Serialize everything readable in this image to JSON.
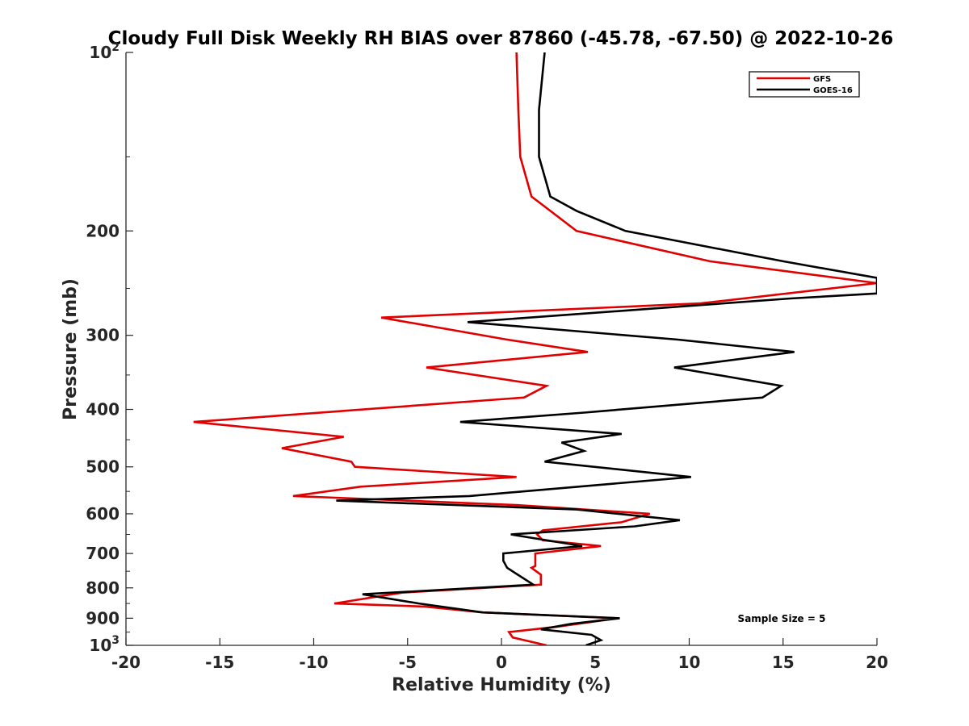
{
  "chart_data": {
    "type": "line",
    "title": "Cloudy Full Disk Weekly RH BIAS over 87860 (-45.78, -67.50) @ 2022-10-26",
    "xlabel": "Relative Humidity (%)",
    "ylabel": "Pressure (mb)",
    "xlim": [
      -20,
      20
    ],
    "ylim": [
      100,
      1000
    ],
    "y_scale": "log",
    "y_reversed": true,
    "x_ticks": [
      "-20",
      "-15",
      "-10",
      "-5",
      "0",
      "5",
      "10",
      "15",
      "20"
    ],
    "y_ticks": [
      {
        "value": 100,
        "label": "10",
        "sup": "2"
      },
      {
        "value": 200,
        "label": "200",
        "sup": ""
      },
      {
        "value": 300,
        "label": "300",
        "sup": ""
      },
      {
        "value": 400,
        "label": "400",
        "sup": ""
      },
      {
        "value": 500,
        "label": "500",
        "sup": ""
      },
      {
        "value": 600,
        "label": "600",
        "sup": ""
      },
      {
        "value": 700,
        "label": "700",
        "sup": ""
      },
      {
        "value": 800,
        "label": "800",
        "sup": ""
      },
      {
        "value": 900,
        "label": "900",
        "sup": ""
      },
      {
        "value": 1000,
        "label": "10",
        "sup": "3"
      }
    ],
    "legend_position": "top-right",
    "annotation": "Sample Size = 5",
    "series": [
      {
        "name": "GFS",
        "color": "#e00000",
        "points": [
          [
            0.8,
            100
          ],
          [
            0.9,
            125
          ],
          [
            1.0,
            150
          ],
          [
            1.6,
            175
          ],
          [
            2.6,
            185
          ],
          [
            4.0,
            200
          ],
          [
            11.1,
            225
          ],
          [
            20,
            245
          ],
          [
            10.6,
            265
          ],
          [
            -6.4,
            280
          ],
          [
            0.3,
            305
          ],
          [
            4.6,
            320
          ],
          [
            -4.0,
            340
          ],
          [
            2.4,
            365
          ],
          [
            1.2,
            382
          ],
          [
            -16.4,
            420
          ],
          [
            -8.4,
            445
          ],
          [
            -11.7,
            465
          ],
          [
            -8.0,
            490
          ],
          [
            -7.8,
            500
          ],
          [
            0.8,
            520
          ],
          [
            -7.5,
            540
          ],
          [
            -11.1,
            560
          ],
          [
            0.8,
            580
          ],
          [
            7.9,
            600
          ],
          [
            6.4,
            620
          ],
          [
            2.2,
            640
          ],
          [
            1.9,
            650
          ],
          [
            2.2,
            665
          ],
          [
            5.3,
            680
          ],
          [
            1.8,
            700
          ],
          [
            1.8,
            735
          ],
          [
            1.6,
            740
          ],
          [
            2.1,
            760
          ],
          [
            2.1,
            790
          ],
          [
            -5.3,
            815
          ],
          [
            -8.9,
            850
          ],
          [
            -4.1,
            860
          ],
          [
            -1.0,
            880
          ],
          [
            6.2,
            900
          ],
          [
            3.0,
            930
          ],
          [
            0.4,
            950
          ],
          [
            0.6,
            970
          ],
          [
            2.4,
            1000
          ]
        ]
      },
      {
        "name": "GOES-16",
        "color": "#000000",
        "points": [
          [
            2.3,
            100
          ],
          [
            2.0,
            125
          ],
          [
            2.0,
            150
          ],
          [
            2.6,
            175
          ],
          [
            4.0,
            185
          ],
          [
            6.6,
            200
          ],
          [
            15.0,
            225
          ],
          [
            20,
            240
          ],
          [
            20,
            255
          ],
          [
            15.4,
            260
          ],
          [
            -1.8,
            285
          ],
          [
            9.4,
            305
          ],
          [
            15.6,
            320
          ],
          [
            9.2,
            340
          ],
          [
            14.9,
            365
          ],
          [
            13.9,
            382
          ],
          [
            4.4,
            405
          ],
          [
            -2.2,
            420
          ],
          [
            6.4,
            440
          ],
          [
            3.2,
            455
          ],
          [
            4.4,
            470
          ],
          [
            2.3,
            490
          ],
          [
            10.1,
            520
          ],
          [
            -1.7,
            560
          ],
          [
            -8.8,
            570
          ],
          [
            4.0,
            590
          ],
          [
            9.5,
            615
          ],
          [
            7.1,
            630
          ],
          [
            0.5,
            650
          ],
          [
            4.3,
            680
          ],
          [
            0.1,
            700
          ],
          [
            0.1,
            720
          ],
          [
            0.3,
            740
          ],
          [
            1.7,
            790
          ],
          [
            -7.4,
            820
          ],
          [
            -4.4,
            850
          ],
          [
            -1.0,
            880
          ],
          [
            6.3,
            900
          ],
          [
            3.7,
            920
          ],
          [
            2.1,
            940
          ],
          [
            4.8,
            960
          ],
          [
            5.3,
            980
          ],
          [
            4.5,
            1000
          ]
        ]
      }
    ]
  }
}
